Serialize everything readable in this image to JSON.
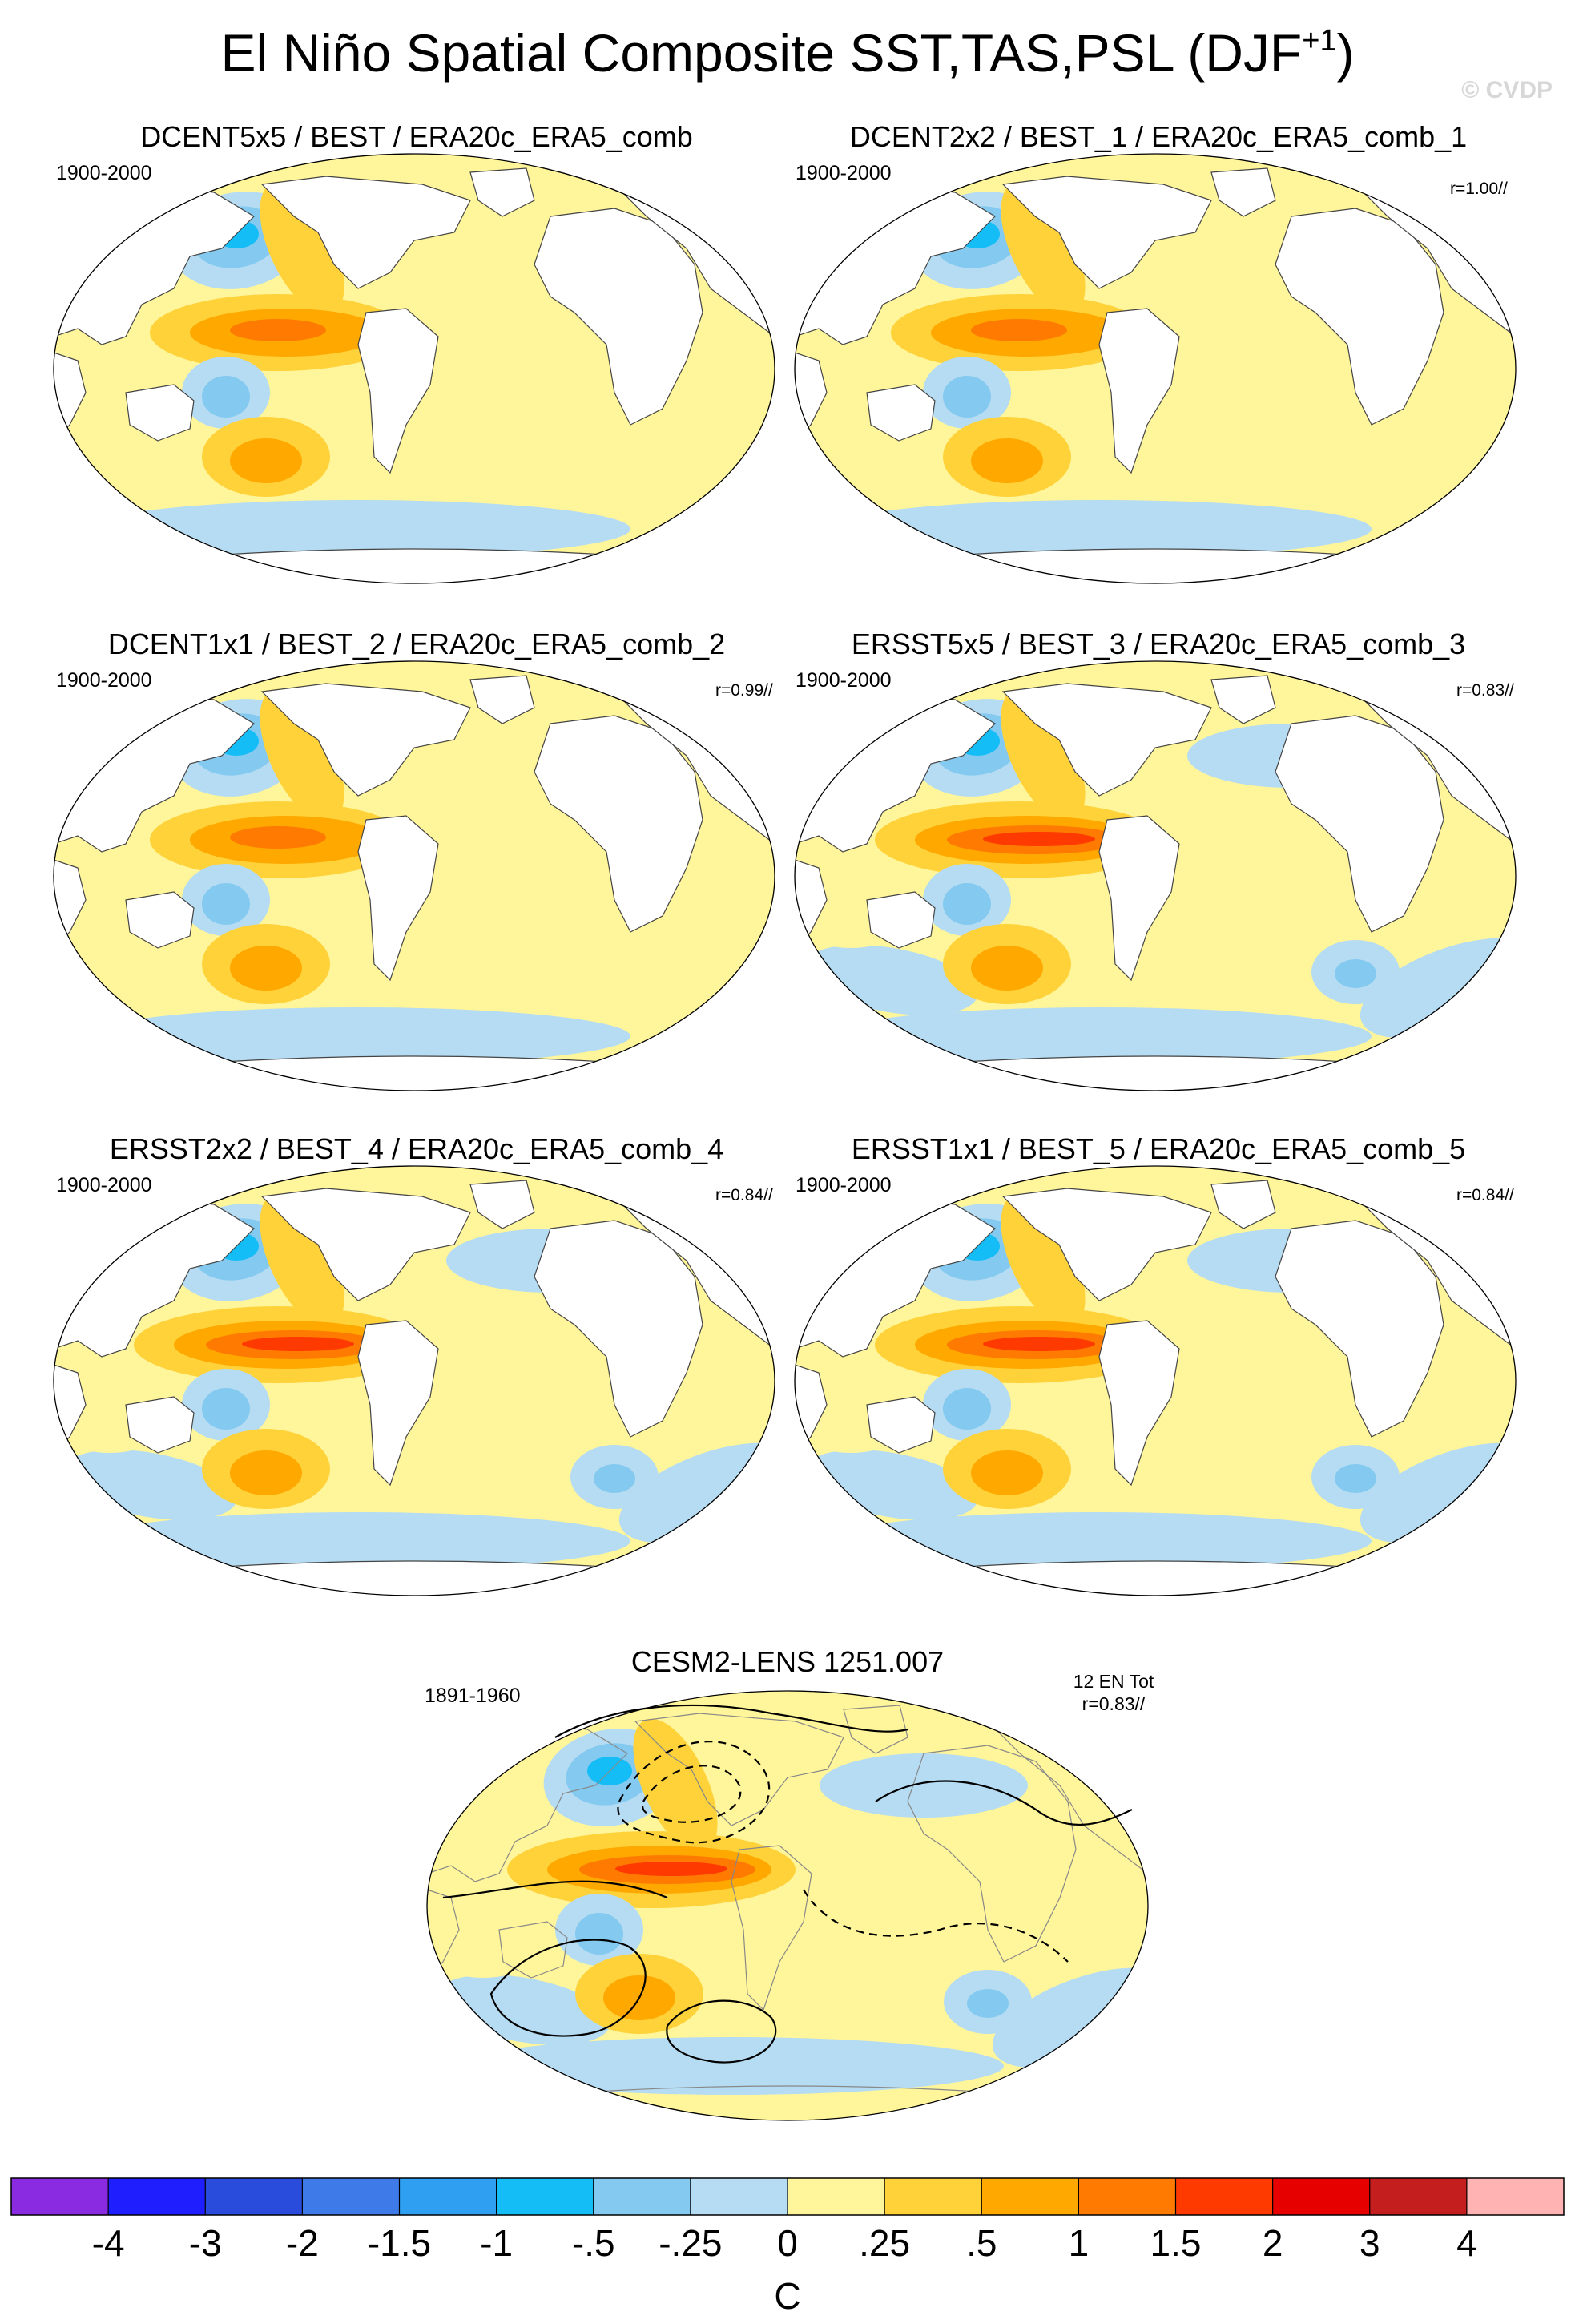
{
  "title": {
    "main": "El Niño Spatial Composite SST,TAS,PSL (DJF",
    "superscript": "+1",
    "close": ")"
  },
  "watermark": "© CVDP",
  "panels": [
    {
      "title": "DCENT5x5 / BEST / ERA20c_ERA5_comb",
      "period": "1900-2000",
      "corr": "",
      "style": "coarse5"
    },
    {
      "title": "DCENT2x2 / BEST_1 / ERA20c_ERA5_comb_1",
      "period": "1900-2000",
      "corr": "r=1.00//",
      "style": "coarse5b"
    },
    {
      "title": "DCENT1x1 / BEST_2 / ERA20c_ERA5_comb_2",
      "period": "1900-2000",
      "corr": "r=0.99//",
      "style": "coarse1"
    },
    {
      "title": "ERSST5x5 / BEST_3 / ERA20c_ERA5_comb_3",
      "period": "1900-2000",
      "corr": "r=0.83//",
      "style": "ersst5"
    },
    {
      "title": "ERSST2x2 / BEST_4 / ERA20c_ERA5_comb_4",
      "period": "1900-2000",
      "corr": "r=0.84//",
      "style": "ersst2"
    },
    {
      "title": "ERSST1x1 / BEST_5 / ERA20c_ERA5_comb_5",
      "period": "1900-2000",
      "corr": "r=0.84//",
      "style": "ersst1"
    }
  ],
  "model_panel": {
    "title": "CESM2-LENS 1251.007",
    "period": "1891-1960",
    "events": "12 EN Tot",
    "corr": "r=0.83//"
  },
  "chart_data": {
    "type": "heatmap",
    "description_field": "global composite anomaly maps (SST over ocean, TAS over land, PSL contours in model panel)",
    "colorbar": {
      "unit": "C",
      "levels": [
        -4,
        -3,
        -2,
        -1.5,
        -1,
        -0.5,
        -0.25,
        0,
        0.25,
        0.5,
        1,
        1.5,
        2,
        3,
        4
      ],
      "tick_labels": [
        "-4",
        "-3",
        "-2",
        "-1.5",
        "-1",
        "-.5",
        "-.25",
        "0",
        ".25",
        ".5",
        "1",
        "1.5",
        "2",
        "3",
        "4"
      ],
      "colors": [
        "#8a2be2",
        "#1e1eff",
        "#2a4cdd",
        "#3f7be8",
        "#2f9ff2",
        "#14bdf5",
        "#83c9f0",
        "#b5dcf2",
        "#fff59a",
        "#ffd23a",
        "#ffa800",
        "#ff7a00",
        "#ff3a00",
        "#e60000",
        "#c41e1e",
        "#ffb3b3"
      ]
    },
    "features": [
      {
        "name": "Tropical Pacific warm tongue",
        "value_c": 1.5
      },
      {
        "name": "North Pacific cold center",
        "value_c": -1.0
      },
      {
        "name": "South Pacific warm center",
        "value_c": 0.5
      },
      {
        "name": "South Pacific cold center",
        "value_c": -0.5
      },
      {
        "name": "Indian Ocean warming",
        "value_c": 0.25
      }
    ]
  }
}
